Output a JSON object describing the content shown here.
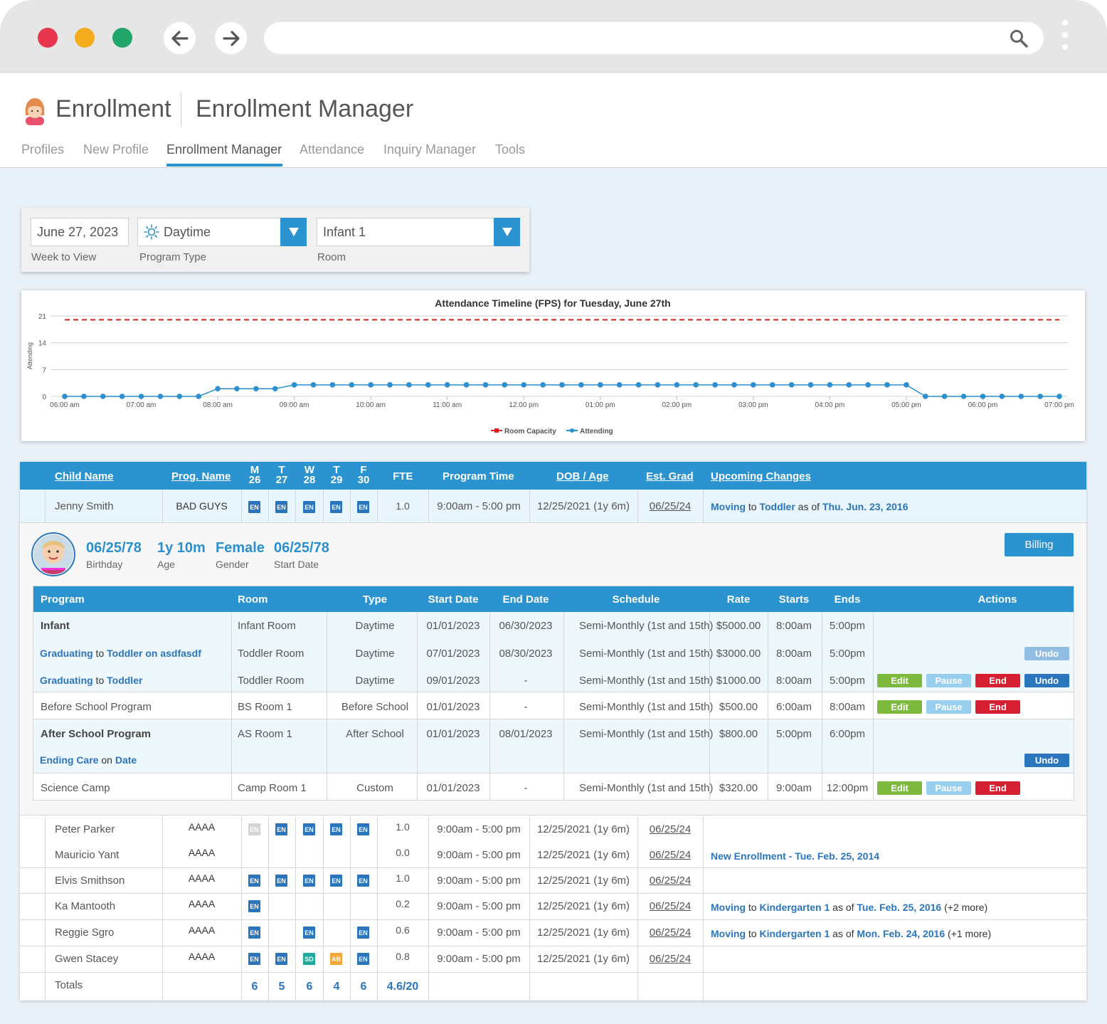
{
  "browser": {
    "icons": {
      "back": "arrow-left-icon",
      "forward": "arrow-right-icon",
      "search": "search-icon",
      "menu": "kebab-menu-icon"
    }
  },
  "app": {
    "title": "Enrollment",
    "subtitle": "Enrollment Manager",
    "avatar_icon": "girl-avatar-icon",
    "tabs": [
      {
        "label": "Profiles"
      },
      {
        "label": "New Profile"
      },
      {
        "label": "Enrollment Manager",
        "active": true
      },
      {
        "label": "Attendance"
      },
      {
        "label": "Inquiry Manager"
      },
      {
        "label": "Tools"
      }
    ]
  },
  "filters": {
    "week": {
      "value": "June 27, 2023",
      "label": "Week to View"
    },
    "program_type": {
      "value": "Daytime",
      "label": "Program Type",
      "icon": "sun-icon"
    },
    "room": {
      "value": "Infant 1",
      "label": "Room"
    }
  },
  "chart_data": {
    "type": "line",
    "title": "Attendance Timeline (FPS) for Tuesday, June 27th",
    "ylabel": "Attending",
    "xlabel": "",
    "y_ticks": [
      0,
      7,
      14,
      21
    ],
    "ylim": [
      0,
      21
    ],
    "x_ticks": [
      "06:00 am",
      "07:00 am",
      "08:00 am",
      "09:00 am",
      "10:00 am",
      "11:00 am",
      "12:00 pm",
      "01:00 pm",
      "02:00 pm",
      "03:00 pm",
      "04:00 pm",
      "05:00 pm",
      "06:00 pm",
      "07:00 pm"
    ],
    "x_hours_range": [
      6,
      19
    ],
    "legend_position": "bottom-center",
    "grid": true,
    "series": [
      {
        "name": "Room Capacity",
        "color": "#e02020",
        "style": "dashed",
        "x": [
          6,
          19
        ],
        "values": [
          20,
          20
        ]
      },
      {
        "name": "Attending",
        "color": "#2b8fd0",
        "style": "solid-markers",
        "x": [
          6,
          6.25,
          6.5,
          6.75,
          7,
          7.25,
          7.5,
          7.75,
          8,
          8.25,
          8.5,
          8.75,
          9,
          9.25,
          9.5,
          9.75,
          10,
          10.25,
          10.5,
          10.75,
          11,
          11.25,
          11.5,
          11.75,
          12,
          12.25,
          12.5,
          12.75,
          13,
          13.25,
          13.5,
          13.75,
          14,
          14.25,
          14.5,
          14.75,
          15,
          15.25,
          15.5,
          15.75,
          16,
          16.25,
          16.5,
          16.75,
          17,
          17.25,
          17.5,
          17.75,
          18,
          18.25,
          18.5,
          18.75,
          19
        ],
        "values": [
          0,
          0,
          0,
          0,
          0,
          0,
          0,
          0,
          2,
          2,
          2,
          2,
          3,
          3,
          3,
          3,
          3,
          3,
          3,
          3,
          3,
          3,
          3,
          3,
          3,
          3,
          3,
          3,
          3,
          3,
          3,
          3,
          3,
          3,
          3,
          3,
          3,
          3,
          3,
          3,
          3,
          3,
          3,
          3,
          3,
          0,
          0,
          0,
          0,
          0,
          0,
          0,
          0
        ]
      }
    ]
  },
  "table": {
    "headers": {
      "child": "Child Name",
      "prog": "Prog. Name",
      "days": [
        [
          "M",
          "26"
        ],
        [
          "T",
          "27"
        ],
        [
          "W",
          "28"
        ],
        [
          "T",
          "29"
        ],
        [
          "F",
          "30"
        ]
      ],
      "fte": "FTE",
      "time": "Program Time",
      "dob": "DOB / Age",
      "grad": "Est. Grad",
      "changes": "Upcoming Changes"
    },
    "expanded": {
      "name": "Jenny Smith",
      "prog": "BAD GUYS",
      "days": [
        "EN",
        "EN",
        "EN",
        "EN",
        "EN"
      ],
      "fte": "1.0",
      "time": "9:00am - 5:00 pm",
      "dob": "12/25/2021 (1y 6m)",
      "grad": "06/25/24",
      "change": {
        "a": "Moving",
        "b": " to ",
        "c": "Toddler",
        "d": " as of ",
        "e": "Thu. Jun. 23, 2016"
      },
      "detail": {
        "photo_icon": "child-photo-avatar",
        "stats": [
          {
            "value": "06/25/78",
            "label": "Birthday"
          },
          {
            "value": "1y 10m",
            "label": "Age"
          },
          {
            "value": "Female",
            "label": "Gender"
          },
          {
            "value": "06/25/78",
            "label": "Start Date"
          }
        ],
        "billing": "Billing",
        "inner_headers": [
          "Program",
          "Room",
          "Type",
          "Start Date",
          "End Date",
          "Schedule",
          "Rate",
          "Starts",
          "Ends",
          "Actions"
        ],
        "rows": [
          {
            "program": "Infant",
            "bold": true,
            "room": "Infant Room",
            "type": "Daytime",
            "start": "01/01/2023",
            "end": "06/30/2023",
            "schedule": "Semi-Monthly (1st and 15th)",
            "rate": "$5000.00",
            "starts": "8:00am",
            "ends": "5:00pm"
          },
          {
            "link": [
              "Graduating",
              " to ",
              "Toddler on asdfasdf"
            ],
            "room": "Toddler Room",
            "type": "Daytime",
            "start": "07/01/2023",
            "end": "08/30/2023",
            "schedule": "Semi-Monthly (1st and 15th)",
            "rate": "$3000.00",
            "starts": "8:00am",
            "ends": "5:00pm"
          },
          {
            "link": [
              "Graduating",
              " to ",
              "Toddler"
            ],
            "room": "Toddler Room",
            "type": "Daytime",
            "start": "09/01/2023",
            "end": "-",
            "schedule": "Semi-Monthly (1st and 15th)",
            "rate": "$1000.00",
            "starts": "8:00am",
            "ends": "5:00pm"
          },
          {
            "program": "Before School Program",
            "room": "BS Room 1",
            "type": "Before School",
            "start": "01/01/2023",
            "end": "-",
            "schedule": "Semi-Monthly (1st and 15th)",
            "rate": "$500.00",
            "starts": "6:00am",
            "ends": "8:00am"
          },
          {
            "program": "After School Program",
            "bold": true,
            "room": "AS Room 1",
            "type": "After School",
            "start": "01/01/2023",
            "end": "08/01/2023",
            "schedule": "Semi-Monthly (1st and 15th)",
            "rate": "$800.00",
            "starts": "5:00pm",
            "ends": "6:00pm"
          },
          {
            "link": [
              "Ending Care",
              " on ",
              "Date"
            ]
          },
          {
            "program": "Science Camp",
            "room": "Camp Room 1",
            "type": "Custom",
            "start": "01/01/2023",
            "end": "-",
            "schedule": "Semi-Monthly (1st and 15th)",
            "rate": "$320.00",
            "starts": "9:00am",
            "ends": "12:00pm"
          }
        ],
        "actions": {
          "edit": "Edit",
          "pause": "Pause",
          "end": "End",
          "undo": "Undo"
        }
      }
    },
    "rows": [
      {
        "name": "Peter Parker",
        "prog": "AAAA",
        "days": [
          "EN",
          "EN",
          "EN",
          "EN",
          "EN"
        ],
        "dim": [
          true,
          false,
          false,
          false,
          false
        ],
        "fte": "1.0",
        "time": "9:00am - 5:00 pm",
        "dob": "12/25/2021 (1y 6m)",
        "grad": "06/25/24",
        "change": null
      },
      {
        "name": "Mauricio Yant",
        "prog": "AAAA",
        "days": [
          "",
          "",
          "",
          "",
          ""
        ],
        "fte": "0.0",
        "time": "9:00am - 5:00 pm",
        "dob": "12/25/2021 (1y 6m)",
        "grad": "06/25/24",
        "change": {
          "a": "New Enrollment - Tue. Feb. 25, 2014"
        }
      },
      {
        "name": "Elvis Smithson",
        "prog": "AAAA",
        "days": [
          "EN",
          "EN",
          "EN",
          "EN",
          "EN"
        ],
        "fte": "1.0",
        "time": "9:00am - 5:00 pm",
        "dob": "12/25/2021 (1y 6m)",
        "grad": "06/25/24",
        "change": null
      },
      {
        "name": "Ka Mantooth",
        "prog": "AAAA",
        "days": [
          "EN",
          "",
          "",
          "",
          ""
        ],
        "fte": "0.2",
        "time": "9:00am - 5:00 pm",
        "dob": "12/25/2021 (1y 6m)",
        "grad": "06/25/24",
        "change": {
          "a": "Moving",
          "b": " to ",
          "c": "Kindergarten 1",
          "d": " as of ",
          "e": "Tue. Feb. 25, 2016",
          "f": " (+2 more)"
        }
      },
      {
        "name": "Reggie Sgro",
        "prog": "AAAA",
        "days": [
          "EN",
          "",
          "EN",
          "",
          "EN"
        ],
        "fte": "0.6",
        "time": "9:00am - 5:00 pm",
        "dob": "12/25/2021 (1y 6m)",
        "grad": "06/25/24",
        "change": {
          "a": "Moving",
          "b": " to ",
          "c": "Kindergarten 1",
          "d": " as of ",
          "e": "Mon. Feb. 24, 2016",
          "f": " (+1 more)"
        }
      },
      {
        "name": "Gwen Stacey",
        "prog": "AAAA",
        "days": [
          "EN",
          "EN",
          "SD",
          "AB",
          "EN"
        ],
        "fte": "0.8",
        "time": "9:00am - 5:00 pm",
        "dob": "12/25/2021 (1y 6m)",
        "grad": "06/25/24",
        "change": null
      }
    ],
    "totals": {
      "label": "Totals",
      "days": [
        "6",
        "5",
        "6",
        "4",
        "6"
      ],
      "fte": "4.6/20"
    }
  }
}
